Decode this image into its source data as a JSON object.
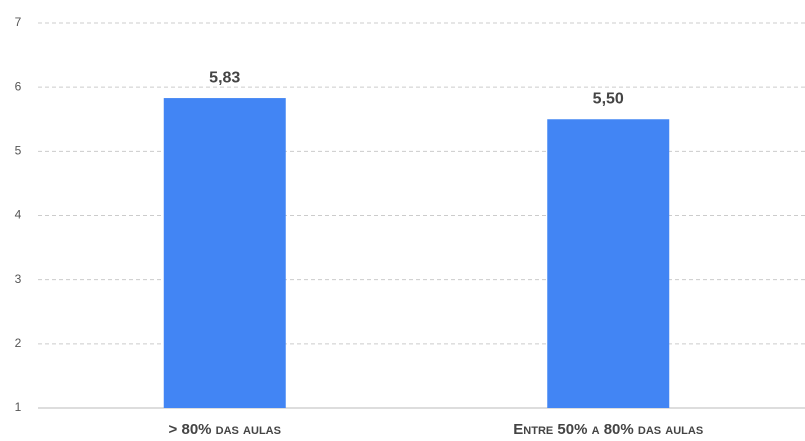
{
  "chart_data": {
    "type": "bar",
    "categories": [
      "> 80% das aulas",
      "Entre 50% a 80% das aulas"
    ],
    "values": [
      5.83,
      5.5
    ],
    "value_labels": [
      "5,83",
      "5,50"
    ],
    "color": "#4285f4",
    "ylim": [
      1,
      7
    ],
    "yticks": [
      1,
      2,
      3,
      4,
      5,
      6,
      7
    ],
    "grid": true
  }
}
